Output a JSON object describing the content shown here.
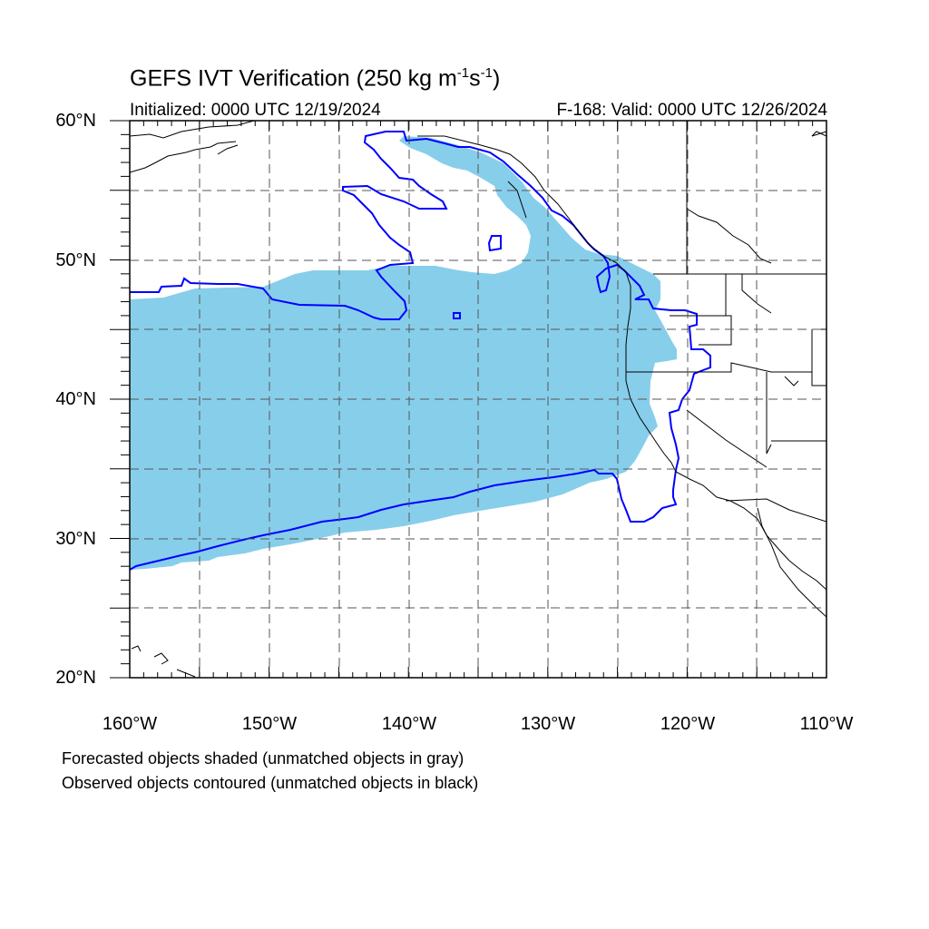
{
  "title": {
    "main": "GEFS IVT Verification (250 kg m",
    "sup1": "-1",
    "mid": "s",
    "sup2": "-1",
    "end": ")"
  },
  "initialized": "Initialized: 0000 UTC 12/19/2024",
  "valid": "F-168: Valid: 0000 UTC 12/26/2024",
  "map": {
    "lon_range": [
      -160,
      -110
    ],
    "lat_range": [
      20,
      60
    ],
    "projection": "cylindrical-equidistant",
    "grid": "dashed, every 5 degrees",
    "x_ticks": [
      "160°W",
      "150°W",
      "140°W",
      "130°W",
      "120°W",
      "110°W"
    ],
    "y_ticks": [
      "60°N",
      "50°N",
      "40°N",
      "30°N",
      "20°N"
    ],
    "forecast_color": "#87ceeb",
    "observed_color": "#0000ff"
  },
  "legend": {
    "line1": "Forecasted objects shaded (unmatched objects in gray)",
    "line2": "Observed objects contoured (unmatched objects in black)"
  }
}
